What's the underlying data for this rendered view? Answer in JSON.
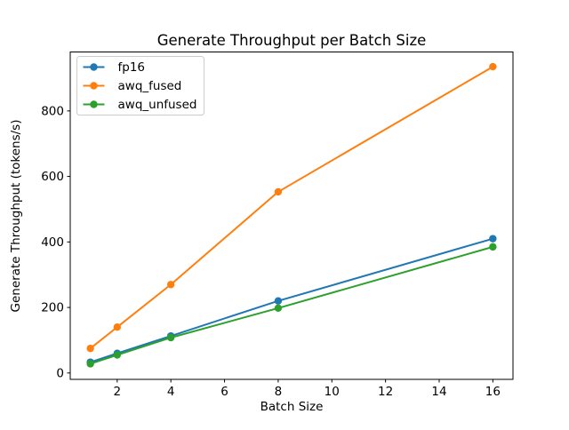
{
  "figure": {
    "background": "#ffffff",
    "text_color": "#000000",
    "spine_color": "#000000",
    "legend_border_color": "#cccccc"
  },
  "chart_data": {
    "type": "line",
    "title": "Generate Throughput per Batch Size",
    "xlabel": "Batch Size",
    "ylabel": "Generate Throughput (tokens/s)",
    "x": [
      1,
      2,
      4,
      8,
      16
    ],
    "series": [
      {
        "name": "fp16",
        "color": "#1f77b4",
        "values": [
          33,
          60,
          113,
          220,
          410
        ]
      },
      {
        "name": "awq_fused",
        "color": "#ff7f0e",
        "values": [
          75,
          140,
          270,
          553,
          935
        ]
      },
      {
        "name": "awq_unfused",
        "color": "#2ca02c",
        "values": [
          28,
          55,
          108,
          198,
          385
        ]
      }
    ],
    "xticks": [
      2,
      4,
      6,
      8,
      10,
      12,
      14,
      16
    ],
    "yticks": [
      0,
      200,
      400,
      600,
      800
    ],
    "xlim": [
      0.25,
      16.75
    ],
    "ylim": [
      -19.5,
      980
    ],
    "grid": false,
    "legend_position": "upper-left",
    "marker": "circle"
  }
}
